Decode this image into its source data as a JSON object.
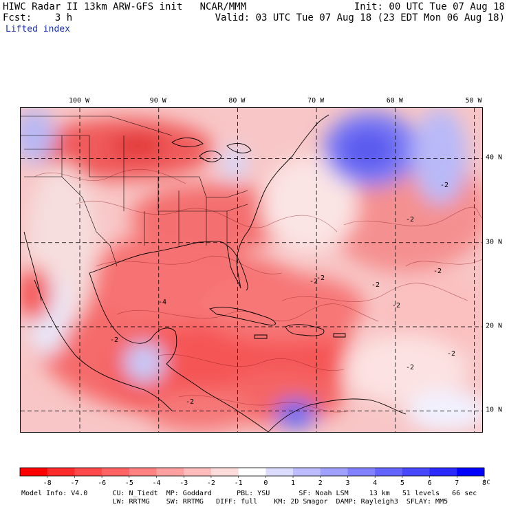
{
  "header": {
    "line1_left": "HIWC Radar II 13km ARW-GFS init   NCAR/MMM",
    "line1_right": "Init: 00 UTC Tue 07 Aug 18",
    "line2_left": "Fcst:    3 h",
    "line2_right": "Valid: 03 UTC Tue 07 Aug 18 (23 EDT Mon 06 Aug 18)",
    "field": "Lifted index"
  },
  "map": {
    "longitude_labels": [
      "100 W",
      "90 W",
      "80 W",
      "70 W",
      "60 W",
      "50 W"
    ],
    "longitudes": [
      -100,
      -90,
      -80,
      -70,
      -60,
      -50
    ],
    "latitude_labels": [
      "40 N",
      "30 N",
      "20 N",
      "10 N"
    ],
    "latitudes": [
      40,
      30,
      20,
      10
    ],
    "lon_range": [
      -107.5,
      -49.0
    ],
    "lat_range": [
      7.5,
      46.0
    ],
    "contour_labels": [
      "-2",
      "-2",
      "-2",
      "-2",
      "-2",
      "-2",
      "-4",
      "-2",
      "-2",
      "-2",
      "-2",
      "-2"
    ],
    "colors": {
      "negative": "#e8202a",
      "positive": "#1f2be0",
      "neutral": "#ffffff",
      "grid": "#000000"
    }
  },
  "colorbar": {
    "unit": "°C",
    "ticks": [
      "-8",
      "-7",
      "-6",
      "-5",
      "-4",
      "-3",
      "-2",
      "-1",
      "0",
      "1",
      "2",
      "3",
      "4",
      "5",
      "6",
      "7",
      "8"
    ],
    "colors": [
      "#ff0000",
      "#ff2a2a",
      "#ff4848",
      "#ff6464",
      "#ff8282",
      "#ffa0a0",
      "#ffbcbc",
      "#ffdcdc",
      "#ffffff",
      "#dcdcff",
      "#bcbcff",
      "#a0a0ff",
      "#8282ff",
      "#6464ff",
      "#4848ff",
      "#2a2aff",
      "#0000ff"
    ]
  },
  "footer": {
    "line1": "Model Info: V4.0      CU: N_Tiedt  MP: Goddard      PBL: YSU       SF: Noah LSM     13 km   51 levels   66 sec",
    "line2": "                      LW: RRTMG    SW: RRTMG   DIFF: full    KM: 2D Smagor  DAMP: Rayleigh3  SFLAY: MM5"
  }
}
